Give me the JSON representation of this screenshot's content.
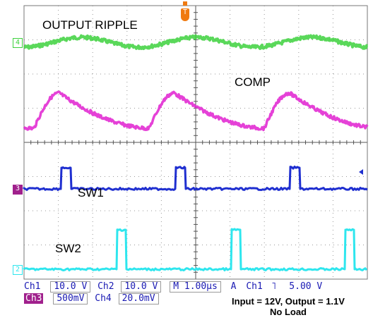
{
  "labels": {
    "output_ripple": "OUTPUT RIPPLE",
    "comp": "COMP",
    "sw1": "SW1",
    "sw2": "SW2"
  },
  "markers": {
    "trigger": "T",
    "ch4": "4",
    "ch3": "3",
    "ch2": "2"
  },
  "status_bar": {
    "row1": {
      "ch1_name": "Ch1",
      "ch1_scale": "10.0 V",
      "ch2_name": "Ch2",
      "ch2_scale": "10.0 V",
      "timebase": "M 1.00µs",
      "trigger_mode": "A",
      "trigger_source": "Ch1",
      "trigger_slope": "˥",
      "trigger_level": "5.00 V"
    },
    "row2": {
      "ch3_name": "Ch3",
      "ch3_scale": "500mV",
      "ch4_name": "Ch4",
      "ch4_scale": "20.0mV"
    }
  },
  "caption": {
    "line1": "Input = 12V, Output = 1.1V",
    "line2": "No Load"
  },
  "colors": {
    "ch4_green": "#3dd13d",
    "comp_magenta": "#e020d0",
    "sw1_blue": "#1f2fd0",
    "sw2_cyan": "#2ee6ee",
    "trigger_orange": "#f07a10",
    "ch3_marker": "#a0208c",
    "status_text": "#1a1ab4"
  }
}
